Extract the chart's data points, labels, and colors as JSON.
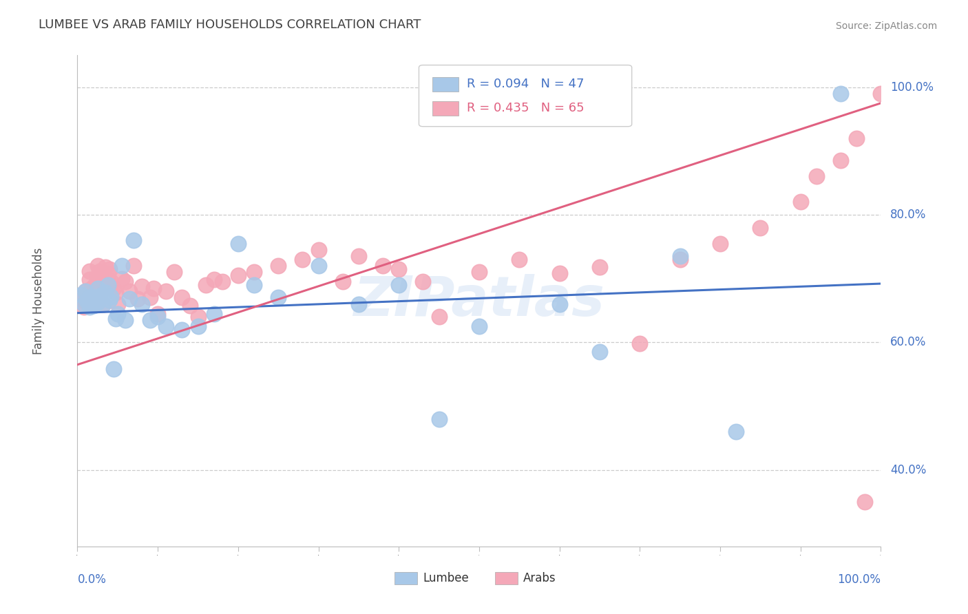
{
  "title": "LUMBEE VS ARAB FAMILY HOUSEHOLDS CORRELATION CHART",
  "source": "Source: ZipAtlas.com",
  "ylabel": "Family Households",
  "lumbee_color": "#a8c8e8",
  "lumbee_edge_color": "#a8c8e8",
  "arabs_color": "#f4a8b8",
  "arabs_edge_color": "#f4a8b8",
  "lumbee_line_color": "#4472c4",
  "arabs_line_color": "#e06080",
  "title_color": "#404040",
  "axis_color": "#4472c4",
  "ytick_values": [
    0.4,
    0.6,
    0.8,
    1.0
  ],
  "ytick_labels": [
    "40.0%",
    "60.0%",
    "80.0%",
    "100.0%"
  ],
  "lumbee_line_x0": 0.0,
  "lumbee_line_y0": 0.646,
  "lumbee_line_x1": 1.0,
  "lumbee_line_y1": 0.692,
  "arabs_line_x0": 0.0,
  "arabs_line_y0": 0.565,
  "arabs_line_x1": 1.0,
  "arabs_line_y1": 0.975,
  "xlim_low": 0.0,
  "xlim_high": 1.0,
  "ylim_low": 0.28,
  "ylim_high": 1.05
}
